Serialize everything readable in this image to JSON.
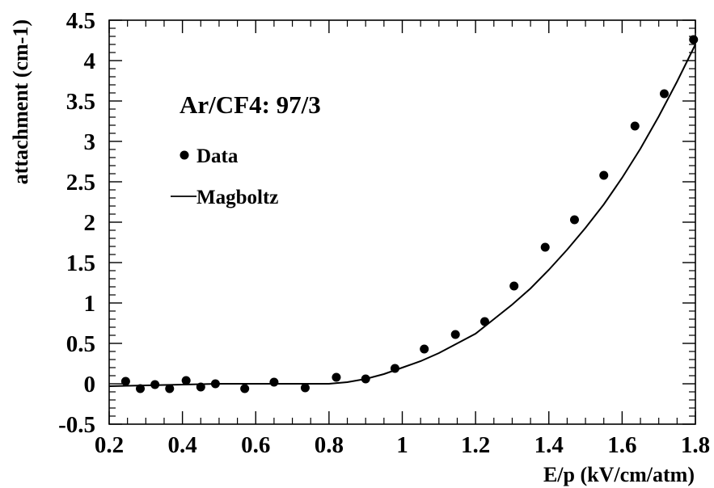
{
  "chart_data": {
    "type": "scatter",
    "title": "Ar/CF4: 97/3",
    "xlabel": "E/p (kV/cm/atm)",
    "ylabel": "attachment (cm-1)",
    "xlim": [
      0.2,
      1.8
    ],
    "ylim": [
      -0.5,
      4.5
    ],
    "x_ticks": [
      "0.2",
      "0.4",
      "0.6",
      "0.8",
      "1",
      "1.2",
      "1.4",
      "1.6",
      "1.8"
    ],
    "y_ticks": [
      "-0.5",
      "0",
      "0.5",
      "1",
      "1.5",
      "2",
      "2.5",
      "3",
      "3.5",
      "4",
      "4.5"
    ],
    "grid": false,
    "legend_position": "top-left",
    "series": [
      {
        "name": "Data",
        "kind": "points",
        "x": [
          0.245,
          0.285,
          0.325,
          0.365,
          0.41,
          0.45,
          0.49,
          0.57,
          0.65,
          0.735,
          0.82,
          0.9,
          0.98,
          1.06,
          1.145,
          1.225,
          1.305,
          1.39,
          1.47,
          1.55,
          1.635,
          1.715,
          1.795
        ],
        "y": [
          0.03,
          -0.06,
          -0.01,
          -0.06,
          0.04,
          -0.04,
          0.0,
          -0.06,
          0.02,
          -0.05,
          0.08,
          0.06,
          0.19,
          0.43,
          0.61,
          0.77,
          1.21,
          1.69,
          2.03,
          2.58,
          3.19,
          3.59,
          4.26
        ]
      },
      {
        "name": "Magboltz",
        "kind": "line",
        "x": [
          0.2,
          0.3,
          0.4,
          0.5,
          0.6,
          0.7,
          0.75,
          0.8,
          0.85,
          0.9,
          0.95,
          1.0,
          1.05,
          1.1,
          1.15,
          1.2,
          1.25,
          1.3,
          1.35,
          1.4,
          1.45,
          1.5,
          1.55,
          1.6,
          1.65,
          1.7,
          1.75,
          1.8
        ],
        "y": [
          -0.03,
          -0.02,
          -0.01,
          0.0,
          0.0,
          0.0,
          0.0,
          0.0,
          0.02,
          0.06,
          0.12,
          0.2,
          0.28,
          0.38,
          0.5,
          0.62,
          0.8,
          0.98,
          1.18,
          1.41,
          1.66,
          1.93,
          2.22,
          2.55,
          2.91,
          3.31,
          3.74,
          4.2
        ]
      }
    ],
    "colors": {
      "axis": "#000000",
      "series": "#000000",
      "background": "#ffffff"
    }
  }
}
